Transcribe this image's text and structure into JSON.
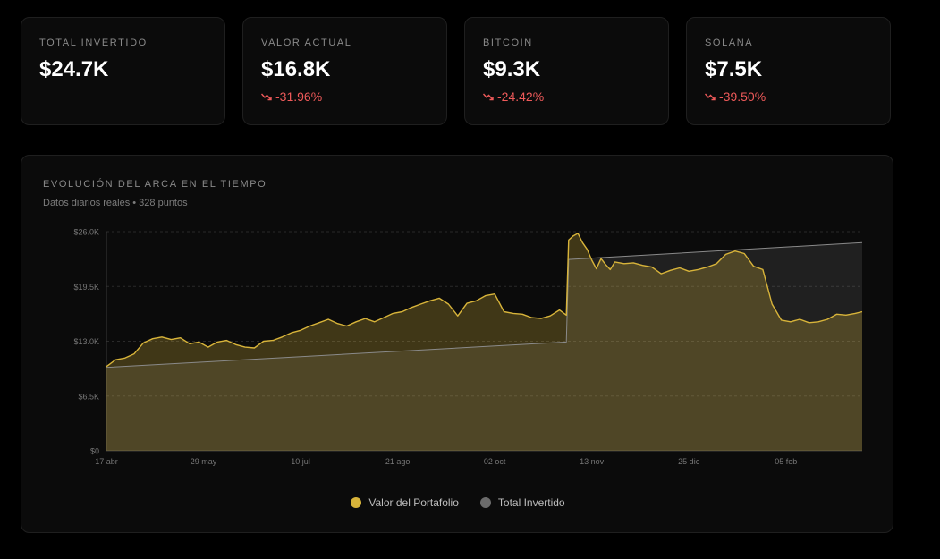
{
  "stats": [
    {
      "label": "TOTAL INVERTIDO",
      "value": "$24.7K",
      "change": ""
    },
    {
      "label": "VALOR ACTUAL",
      "value": "$16.8K",
      "change": "-31.96%"
    },
    {
      "label": "BITCOIN",
      "value": "$9.3K",
      "change": "-24.42%"
    },
    {
      "label": "SOLANA",
      "value": "$7.5K",
      "change": "-39.50%"
    }
  ],
  "colors": {
    "negative": "#ef5a5a",
    "portfolio": "#d8b43a",
    "invested": "#6b6b6b"
  },
  "chart_panel": {
    "title": "EVOLUCIÓN DEL ARCA EN EL TIEMPO",
    "subtitle": "Datos diarios reales • 328 puntos"
  },
  "legend": [
    {
      "name": "Valor del Portafolio",
      "color": "#d8b43a"
    },
    {
      "name": "Total Invertido",
      "color": "#6b6b6b"
    }
  ],
  "chart_data": {
    "type": "area",
    "title": "EVOLUCIÓN DEL ARCA EN EL TIEMPO",
    "xlabel": "",
    "ylabel": "",
    "x_ticks": [
      "17 abr",
      "29 may",
      "10 jul",
      "21 ago",
      "02 oct",
      "13 nov",
      "25 dic",
      "05 feb"
    ],
    "x_tick_days": [
      0,
      42,
      84,
      126,
      168,
      210,
      252,
      294
    ],
    "y_ticks": [
      "$0",
      "$6.5K",
      "$13.0K",
      "$19.5K",
      "$26.0K"
    ],
    "y_tick_values": [
      0,
      6500,
      13000,
      19500,
      26000
    ],
    "ylim": [
      0,
      26000
    ],
    "x_range_days": [
      0,
      327
    ],
    "grid": true,
    "legend_position": "bottom",
    "series": [
      {
        "name": "Valor del Portafolio",
        "x_days": [
          0,
          4,
          8,
          12,
          16,
          20,
          24,
          28,
          32,
          36,
          40,
          44,
          48,
          52,
          56,
          60,
          64,
          68,
          72,
          76,
          80,
          84,
          88,
          92,
          96,
          100,
          104,
          108,
          112,
          116,
          120,
          124,
          128,
          132,
          136,
          140,
          144,
          148,
          152,
          156,
          160,
          164,
          168,
          172,
          176,
          180,
          184,
          188,
          192,
          196,
          199,
          200,
          202,
          204,
          206,
          208,
          210,
          212,
          214,
          216,
          218,
          220,
          224,
          228,
          232,
          236,
          240,
          244,
          248,
          252,
          256,
          260,
          264,
          268,
          272,
          276,
          280,
          284,
          288,
          292,
          296,
          300,
          304,
          308,
          312,
          316,
          320,
          324,
          327
        ],
        "values": [
          10000,
          10800,
          11000,
          11500,
          12800,
          13300,
          13500,
          13200,
          13400,
          12700,
          12900,
          12300,
          12900,
          13100,
          12600,
          12300,
          12200,
          13000,
          13100,
          13500,
          14000,
          14300,
          14800,
          15200,
          15600,
          15100,
          14800,
          15300,
          15700,
          15300,
          15800,
          16300,
          16500,
          17000,
          17400,
          17800,
          18100,
          17400,
          16000,
          17500,
          17800,
          18400,
          18600,
          16500,
          16300,
          16200,
          15800,
          15700,
          16000,
          16700,
          16100,
          25000,
          25500,
          25800,
          24700,
          23900,
          22600,
          21600,
          22800,
          22100,
          21500,
          22400,
          22200,
          22300,
          22000,
          21800,
          21000,
          21400,
          21700,
          21300,
          21500,
          21800,
          22200,
          23300,
          23700,
          23400,
          21900,
          21500,
          17400,
          15500,
          15300,
          15600,
          15200,
          15300,
          15600,
          16200,
          16100,
          16300,
          16500
        ]
      },
      {
        "name": "Total Invertido",
        "x_days": [
          0,
          199,
          200,
          327
        ],
        "values": [
          9900,
          12900,
          22700,
          24700
        ]
      }
    ]
  }
}
